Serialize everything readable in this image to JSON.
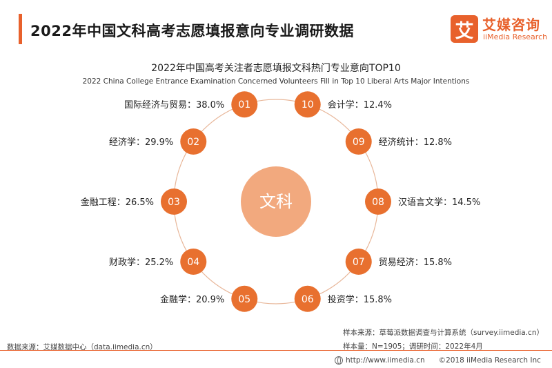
{
  "header": {
    "title": "2022年中国文科高考志愿填报意向专业调研数据"
  },
  "logo": {
    "mark": "艾",
    "name_cn": "艾媒咨询",
    "name_en": "iiMedia Research"
  },
  "chart_data": {
    "type": "radial-ranking",
    "title": "2022年中国高考关注者志愿填报文科热门专业意向TOP10",
    "subtitle": "2022 China College Entrance Examination Concerned Volunteers Fill in Top 10 Liberal Arts Major Intentions",
    "center_label": "文科",
    "unit": "%",
    "items": [
      {
        "rank": "01",
        "category": "国际经济与贸易",
        "value": 38.0,
        "label": "国际经济与贸易：38.0%"
      },
      {
        "rank": "02",
        "category": "经济学",
        "value": 29.9,
        "label": "经济学：29.9%"
      },
      {
        "rank": "03",
        "category": "金融工程",
        "value": 26.5,
        "label": "金融工程：26.5%"
      },
      {
        "rank": "04",
        "category": "财政学",
        "value": 25.2,
        "label": "财政学：25.2%"
      },
      {
        "rank": "05",
        "category": "金融学",
        "value": 20.9,
        "label": "金融学：20.9%"
      },
      {
        "rank": "06",
        "category": "投资学",
        "value": 15.8,
        "label": "投资学：15.8%"
      },
      {
        "rank": "07",
        "category": "贸易经济",
        "value": 15.8,
        "label": "贸易经济：15.8%"
      },
      {
        "rank": "08",
        "category": "汉语言文学",
        "value": 14.5,
        "label": "汉语言文学：14.5%"
      },
      {
        "rank": "09",
        "category": "经济统计",
        "value": 12.8,
        "label": "经济统计：12.8%"
      },
      {
        "rank": "10",
        "category": "会计学",
        "value": 12.4,
        "label": "会计学：12.4%"
      }
    ],
    "colors": {
      "node": "#e8702f",
      "center": "#f2a97e",
      "ring": "#e8b79a"
    }
  },
  "footer": {
    "data_source": "数据来源：艾媒数据中心（data.iimedia.cn）",
    "sample_source": "样本来源：草莓派数据调查与计算系统（survey.iimedia.cn）",
    "sample_size": "样本量：N=1905；调研时间：2022年4月",
    "website": "http://www.iimedia.cn",
    "copyright": "©2018  iiMedia Research  Inc"
  }
}
